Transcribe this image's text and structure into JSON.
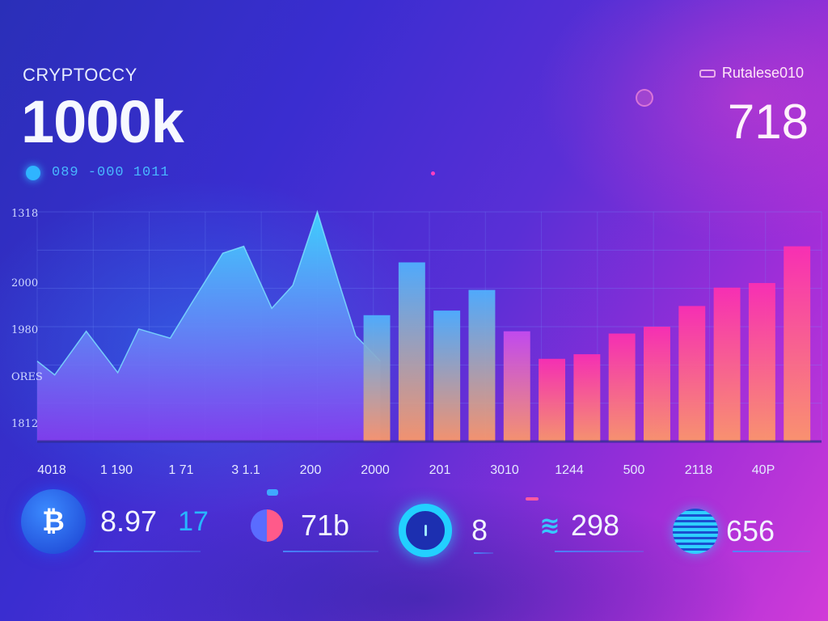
{
  "header": {
    "app_name": "CRYPTOCCY",
    "main_value": "1000k",
    "sub_text": "089 -000 1011",
    "rate_label": "Rutalese010",
    "right_value": "718"
  },
  "colors": {
    "area_top": "#3fd6ff",
    "area_bottom": "#8a3ff0",
    "bar_top_blue": "#4fb4ff",
    "bar_top_pink": "#ff2fb0",
    "bar_bottom": "#ff9a66",
    "accent_cyan": "#2fb4ff"
  },
  "chart_data": {
    "type": "bar",
    "title": "",
    "ylabels": [
      "1318",
      "2000",
      "1980",
      "ORES",
      "1812"
    ],
    "xlabels": [
      "4018",
      "1 190",
      "1 71",
      "3 1.1",
      "200",
      "2000",
      "201",
      "3010",
      "1244",
      "500",
      "2118",
      "40P"
    ],
    "ylim": [
      0,
      100
    ],
    "area_series": {
      "x": [
        0,
        5,
        14,
        23,
        29,
        38,
        44,
        53,
        59,
        67,
        73,
        80,
        86,
        91,
        98
      ],
      "y": [
        35,
        29,
        48,
        30,
        49,
        45,
        60,
        82,
        85,
        58,
        68,
        100,
        70,
        46,
        35
      ]
    },
    "bars": [
      {
        "x": 97,
        "value": 55,
        "tone": "blue"
      },
      {
        "x": 107,
        "value": 78,
        "tone": "blue"
      },
      {
        "x": 117,
        "value": 57,
        "tone": "blue"
      },
      {
        "x": 127,
        "value": 66,
        "tone": "blue"
      },
      {
        "x": 137,
        "value": 48,
        "tone": "mid"
      },
      {
        "x": 147,
        "value": 36,
        "tone": "pink"
      },
      {
        "x": 157,
        "value": 38,
        "tone": "pink"
      },
      {
        "x": 167,
        "value": 47,
        "tone": "pink"
      },
      {
        "x": 177,
        "value": 50,
        "tone": "pink"
      },
      {
        "x": 187,
        "value": 59,
        "tone": "pink"
      },
      {
        "x": 197,
        "value": 67,
        "tone": "pink"
      },
      {
        "x": 207,
        "value": 69,
        "tone": "pink"
      },
      {
        "x": 217,
        "value": 85,
        "tone": "pink"
      }
    ],
    "grid": true
  },
  "stats": [
    {
      "icon": "bitcoin-icon",
      "symbol": "₿",
      "value": "8.97",
      "extra": "17"
    },
    {
      "icon": "half-coin-icon",
      "value": "71b"
    },
    {
      "icon": "ring-gauge-icon",
      "value": "8"
    },
    {
      "icon": "wave-icon",
      "symbol": "≋",
      "value": "298"
    },
    {
      "icon": "stack-coin-icon",
      "value": "656"
    }
  ]
}
